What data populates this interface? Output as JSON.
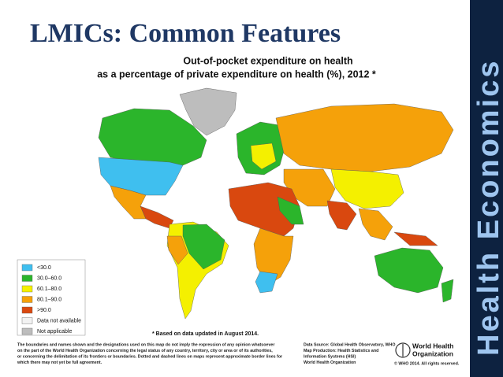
{
  "slide": {
    "title": "LMICs: Common Features",
    "sidebar": "Health Economics"
  },
  "map": {
    "title_lines": [
      "Out-of-pocket expenditure on health",
      "as a percentage of private expenditure on health (%), 2012 *"
    ],
    "legend": [
      {
        "label": "<30.0",
        "color": "#3fbfef"
      },
      {
        "label": "30.0–60.0",
        "color": "#2bb52b"
      },
      {
        "label": "60.1–80.0",
        "color": "#f4f000"
      },
      {
        "label": "80.1–90.0",
        "color": "#f5a10a"
      },
      {
        "label": ">90.0",
        "color": "#d9480f"
      },
      {
        "label": "Data not available",
        "color": "#f2f2f2"
      },
      {
        "label": "Not applicable",
        "color": "#bdbdbd"
      }
    ],
    "note": "* Based on data updated in August 2014.",
    "disclaimer": [
      "The boundaries and names shown and the designations used on this map do not imply the expression of any opinion whatsoever",
      "on the part of the World Health Organization concerning the legal status of any country, territory, city or area or of its authorities,",
      "or concerning the delimitation of its frontiers or boundaries.  Dotted and dashed lines on maps represent approximate border lines for",
      "which there may not yet be full agreement."
    ],
    "source": [
      "Data Source: Global Health Observatory, WHO",
      "Map Production: Health Statistics and",
      "Information Systems (HSI)",
      "World Health Organization"
    ],
    "organization": [
      "World Health",
      "Organization"
    ],
    "copyright": "© WHO 2014. All rights reserved."
  }
}
